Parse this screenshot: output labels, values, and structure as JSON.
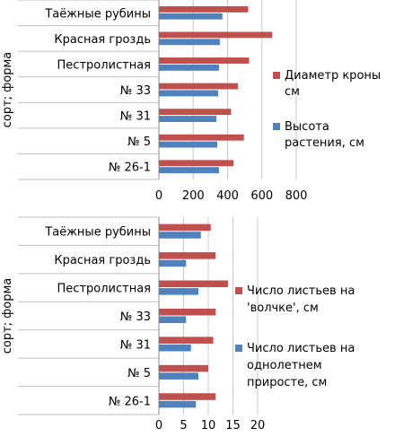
{
  "chart_data": [
    {
      "type": "bar",
      "orientation": "horizontal",
      "ylabel": "сорт; форма",
      "categories": [
        "Таёжные рубины",
        "Красная гроздь",
        "Пестролистная",
        "№ 33",
        "№ 31",
        "№ 5",
        "№ 26-1"
      ],
      "xlim": [
        0,
        800
      ],
      "xticks": [
        0,
        200,
        400,
        600,
        800
      ],
      "grid": true,
      "legend_position": "right",
      "series": [
        {
          "name": "Диаметр кроны, см",
          "legend_lines": [
            "Диаметр кроны",
            "см"
          ],
          "color": "#c0504d",
          "values": [
            520,
            660,
            525,
            460,
            420,
            495,
            435
          ]
        },
        {
          "name": "Высота растения, см",
          "legend_lines": [
            "Высота",
            "растения, см"
          ],
          "color": "#4f81bd",
          "values": [
            370,
            355,
            350,
            345,
            335,
            340,
            350
          ]
        }
      ]
    },
    {
      "type": "bar",
      "orientation": "horizontal",
      "ylabel": "сорт; форма",
      "categories": [
        "Таёжные рубины",
        "Красная гроздь",
        "Пестролистная",
        "№ 33",
        "№ 31",
        "№ 5",
        "№ 26-1"
      ],
      "xlim": [
        0,
        20
      ],
      "xticks": [
        0,
        5,
        10,
        15,
        20
      ],
      "grid": true,
      "legend_position": "right",
      "series": [
        {
          "name": "Число листьев на 'волчке', см",
          "legend_lines": [
            "Число листьев на",
            "'волчке', см"
          ],
          "color": "#c0504d",
          "values": [
            10.5,
            11.5,
            14,
            11.5,
            11,
            10,
            11.5
          ]
        },
        {
          "name": "Число листьев на однолетнем приросте, см",
          "legend_lines": [
            "Число листьев на",
            "однолетнем",
            "приросте, см"
          ],
          "color": "#4f81bd",
          "values": [
            8.5,
            5.5,
            8,
            5.5,
            6.5,
            8,
            7.5
          ]
        }
      ]
    }
  ]
}
